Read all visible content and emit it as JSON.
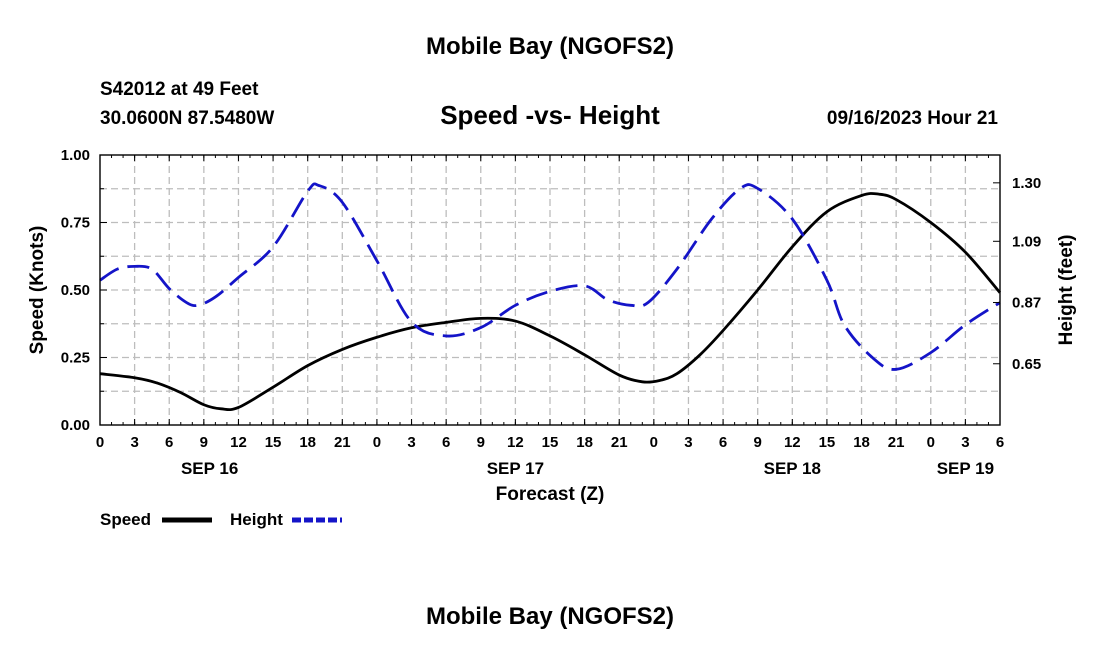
{
  "header": {
    "title": "Mobile Bay (NGOFS2)",
    "station": "S42012 at 49 Feet",
    "coords": "30.0600N  87.5480W",
    "subtitle": "Speed -vs- Height",
    "timestamp": "09/16/2023 Hour 21",
    "footer_title": "Mobile Bay (NGOFS2)"
  },
  "legend": {
    "speed_label": "Speed",
    "height_label": "Height"
  },
  "colors": {
    "speed": "#000000",
    "height": "#1414c8",
    "grid": "#bdbdbd"
  },
  "chart_data": {
    "type": "line",
    "title": "Speed -vs- Height",
    "xlabel": "Forecast (Z)",
    "ylabel": "Speed (Knots)",
    "y2label": "Height (feet)",
    "x_unit": "hours since SEP 16 00Z",
    "xlim": [
      0,
      78
    ],
    "x_ticks": [
      0,
      3,
      6,
      9,
      12,
      15,
      18,
      21,
      24,
      27,
      30,
      33,
      36,
      39,
      42,
      45,
      48,
      51,
      54,
      57,
      60,
      63,
      66,
      69,
      72,
      75,
      78
    ],
    "x_tick_labels": [
      "0",
      "3",
      "6",
      "9",
      "12",
      "15",
      "18",
      "21",
      "0",
      "3",
      "6",
      "9",
      "12",
      "15",
      "18",
      "21",
      "0",
      "3",
      "6",
      "9",
      "12",
      "15",
      "18",
      "21",
      "0",
      "3",
      "6"
    ],
    "day_labels": [
      {
        "label": "SEP 16",
        "x": 9.5
      },
      {
        "label": "SEP 17",
        "x": 36
      },
      {
        "label": "SEP 18",
        "x": 60
      },
      {
        "label": "SEP 19",
        "x": 75
      }
    ],
    "ylim": [
      0,
      1
    ],
    "y_ticks": [
      0,
      0.25,
      0.5,
      0.75,
      1
    ],
    "y_tick_labels": [
      "0.00",
      "0.25",
      "0.50",
      "0.75",
      "1.00"
    ],
    "y2lim": [
      0.43,
      1.4
    ],
    "y2_ticks": [
      0.65,
      0.87,
      1.09,
      1.3
    ],
    "y2_tick_labels": [
      "0.65",
      "0.87",
      "1.09",
      "1.30"
    ],
    "grid": true,
    "series": [
      {
        "name": "Speed",
        "axis": "left",
        "style": "solid",
        "x": [
          0,
          3,
          5,
          7,
          9,
          10.5,
          12,
          15,
          18,
          21,
          24,
          27,
          30,
          33,
          36,
          39,
          42,
          45,
          47,
          48.5,
          50,
          52,
          54,
          57,
          60,
          63,
          66,
          67.5,
          69,
          72,
          75,
          78
        ],
        "y": [
          0.19,
          0.175,
          0.155,
          0.12,
          0.075,
          0.06,
          0.065,
          0.14,
          0.22,
          0.28,
          0.325,
          0.36,
          0.38,
          0.395,
          0.385,
          0.33,
          0.26,
          0.185,
          0.16,
          0.165,
          0.19,
          0.26,
          0.35,
          0.5,
          0.66,
          0.79,
          0.85,
          0.855,
          0.835,
          0.75,
          0.64,
          0.49
        ]
      },
      {
        "name": "Height",
        "axis": "right",
        "style": "dashed",
        "x": [
          0,
          1.5,
          3,
          4.5,
          6,
          7.5,
          8.5,
          10,
          12,
          15,
          18,
          19,
          21,
          24,
          27,
          30,
          33,
          36,
          39,
          42,
          44,
          46,
          47.5,
          50,
          53,
          55.5,
          57,
          60,
          63,
          64.5,
          67,
          69,
          72,
          75,
          78
        ],
        "y": [
          0.95,
          0.99,
          1.0,
          0.99,
          0.92,
          0.87,
          0.86,
          0.89,
          0.96,
          1.07,
          1.27,
          1.29,
          1.23,
          1.02,
          0.8,
          0.75,
          0.78,
          0.86,
          0.91,
          0.93,
          0.88,
          0.86,
          0.87,
          0.99,
          1.17,
          1.28,
          1.28,
          1.17,
          0.95,
          0.79,
          0.67,
          0.63,
          0.69,
          0.79,
          0.87
        ]
      }
    ]
  }
}
